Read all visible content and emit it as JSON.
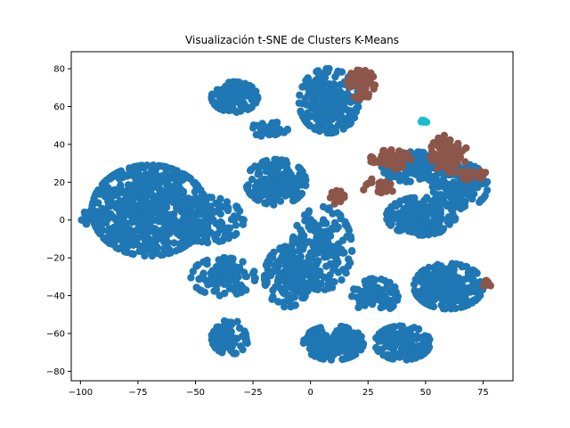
{
  "chart_data": {
    "type": "scatter",
    "title": "Visualización t-SNE de Clusters K-Means",
    "xlabel": "",
    "ylabel": "",
    "xlim": [
      -104,
      88
    ],
    "ylim": [
      -85,
      89
    ],
    "xticks": [
      -100,
      -75,
      -50,
      -25,
      0,
      25,
      50,
      75
    ],
    "yticks": [
      -80,
      -60,
      -40,
      -20,
      0,
      20,
      40,
      60,
      80
    ],
    "grid": false,
    "legend": "none",
    "series": [
      {
        "color": "#1f77b4",
        "clusters": [
          {
            "cx": -70,
            "cy": 5,
            "rx": 25,
            "ry": 24,
            "n": 650
          },
          {
            "cx": -94,
            "cy": 2,
            "rx": 6,
            "ry": 5,
            "n": 40
          },
          {
            "cx": -38,
            "cy": -30,
            "rx": 14,
            "ry": 10,
            "n": 120
          },
          {
            "cx": -45,
            "cy": 0,
            "rx": 16,
            "ry": 12,
            "n": 150
          },
          {
            "cx": -33,
            "cy": 65,
            "rx": 10,
            "ry": 8,
            "n": 120
          },
          {
            "cx": -18,
            "cy": 48,
            "rx": 8,
            "ry": 4,
            "n": 50
          },
          {
            "cx": 8,
            "cy": 63,
            "rx": 13,
            "ry": 17,
            "n": 260
          },
          {
            "cx": -15,
            "cy": 20,
            "rx": 13,
            "ry": 12,
            "n": 180
          },
          {
            "cx": -10,
            "cy": -30,
            "rx": 10,
            "ry": 16,
            "n": 160
          },
          {
            "cx": 5,
            "cy": -15,
            "rx": 13,
            "ry": 22,
            "n": 200
          },
          {
            "cx": 10,
            "cy": -65,
            "rx": 13,
            "ry": 9,
            "n": 180
          },
          {
            "cx": -35,
            "cy": -62,
            "rx": 8,
            "ry": 9,
            "n": 70
          },
          {
            "cx": 28,
            "cy": -40,
            "rx": 10,
            "ry": 9,
            "n": 90
          },
          {
            "cx": 40,
            "cy": -65,
            "rx": 12,
            "ry": 9,
            "n": 160
          },
          {
            "cx": 60,
            "cy": -35,
            "rx": 15,
            "ry": 12,
            "n": 230
          },
          {
            "cx": 48,
            "cy": 2,
            "rx": 15,
            "ry": 10,
            "n": 200
          },
          {
            "cx": 45,
            "cy": 28,
            "rx": 14,
            "ry": 8,
            "n": 140
          },
          {
            "cx": 65,
            "cy": 18,
            "rx": 12,
            "ry": 12,
            "n": 150
          }
        ]
      },
      {
        "color": "#8c564b",
        "clusters": [
          {
            "cx": 22,
            "cy": 72,
            "rx": 6,
            "ry": 8,
            "n": 60
          },
          {
            "cx": 35,
            "cy": 32,
            "rx": 9,
            "ry": 5,
            "n": 50
          },
          {
            "cx": 60,
            "cy": 35,
            "rx": 8,
            "ry": 10,
            "n": 70
          },
          {
            "cx": 12,
            "cy": 12,
            "rx": 4,
            "ry": 6,
            "n": 12
          },
          {
            "cx": 30,
            "cy": 18,
            "rx": 8,
            "ry": 4,
            "n": 20
          },
          {
            "cx": 70,
            "cy": 25,
            "rx": 6,
            "ry": 4,
            "n": 20
          },
          {
            "cx": 76,
            "cy": -35,
            "rx": 3,
            "ry": 3,
            "n": 6
          }
        ]
      },
      {
        "color": "#17becf",
        "clusters": [
          {
            "cx": 49,
            "cy": 52,
            "rx": 1.5,
            "ry": 1.5,
            "n": 6
          }
        ]
      }
    ]
  }
}
